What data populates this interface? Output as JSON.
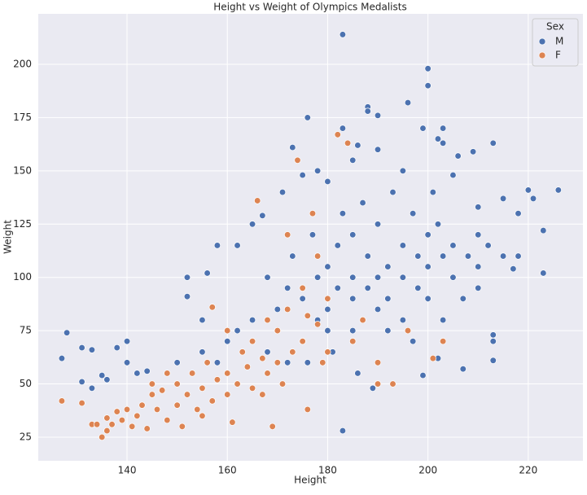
{
  "chart_data": {
    "type": "scatter",
    "title": "Height vs Weight of Olympics Medalists",
    "x_label": "Height",
    "y_label": "Weight",
    "xlim": [
      122.3,
      230.9
    ],
    "ylim": [
      13.9,
      223.7
    ],
    "xticks": [
      140,
      160,
      180,
      200,
      220
    ],
    "yticks": [
      25,
      50,
      75,
      100,
      125,
      150,
      175,
      200
    ],
    "grid": true,
    "legend_title": "Sex",
    "legend_position": "upper right",
    "series": [
      {
        "name": "M",
        "color": "#4c72b0",
        "x": [
          183,
          200,
          200,
          196,
          188,
          188,
          176,
          190,
          199,
          203,
          183,
          202,
          203,
          213,
          206,
          209,
          173,
          186,
          220,
          226,
          223,
          223,
          217,
          213,
          213,
          213,
          183,
          127,
          128,
          131,
          133,
          131,
          133,
          135,
          136,
          138,
          140,
          140,
          142,
          144,
          152,
          152,
          156,
          158,
          162,
          165,
          167,
          171,
          175,
          178,
          180,
          185,
          190,
          195,
          201,
          205,
          210,
          215,
          218,
          221,
          199,
          202,
          207,
          189,
          186,
          165,
          170,
          170,
          172,
          175,
          175,
          178,
          178,
          180,
          180,
          180,
          182,
          182,
          185,
          185,
          185,
          188,
          188,
          190,
          190,
          190,
          192,
          192,
          195,
          195,
          195,
          198,
          198,
          200,
          200,
          200,
          203,
          205,
          205,
          208,
          210,
          210,
          212,
          215,
          218,
          160,
          158,
          155,
          162,
          168,
          173,
          177,
          183,
          187,
          193,
          197,
          202,
          207,
          176,
          181,
          185,
          192,
          197,
          203,
          210,
          168,
          172,
          150,
          155
        ],
        "values": [
          214,
          198,
          190,
          182,
          180,
          178,
          175,
          176,
          170,
          170,
          170,
          165,
          163,
          163,
          157,
          159,
          161,
          162,
          141,
          141,
          122,
          102,
          104,
          61,
          70,
          73,
          28,
          62,
          74,
          67,
          66,
          51,
          48,
          54,
          52,
          67,
          70,
          60,
          55,
          56,
          100,
          91,
          102,
          115,
          115,
          125,
          129,
          140,
          148,
          150,
          145,
          155,
          160,
          150,
          140,
          148,
          133,
          137,
          130,
          137,
          54,
          62,
          57,
          48,
          55,
          80,
          85,
          75,
          95,
          90,
          70,
          100,
          80,
          85,
          105,
          75,
          95,
          115,
          90,
          100,
          120,
          95,
          110,
          85,
          100,
          125,
          105,
          90,
          100,
          115,
          80,
          110,
          95,
          105,
          120,
          90,
          110,
          100,
          115,
          110,
          105,
          120,
          115,
          110,
          110,
          70,
          60,
          65,
          75,
          65,
          110,
          120,
          130,
          135,
          140,
          130,
          125,
          90,
          60,
          65,
          75,
          75,
          70,
          80,
          95,
          100,
          60,
          60,
          80
        ]
      },
      {
        "name": "F",
        "color": "#dd8452",
        "x": [
          127,
          131,
          133,
          134,
          135,
          136,
          136,
          137,
          138,
          139,
          140,
          141,
          142,
          143,
          144,
          145,
          146,
          147,
          148,
          150,
          150,
          151,
          152,
          153,
          154,
          155,
          156,
          157,
          158,
          160,
          160,
          161,
          162,
          163,
          164,
          165,
          165,
          166,
          167,
          168,
          168,
          169,
          170,
          170,
          171,
          172,
          173,
          174,
          175,
          175,
          176,
          177,
          178,
          179,
          180,
          180,
          182,
          184,
          185,
          187,
          190,
          193,
          196,
          201,
          203,
          190,
          176,
          172,
          178,
          160,
          157,
          148,
          145,
          167,
          155
        ],
        "values": [
          42,
          41,
          31,
          31,
          25,
          28,
          34,
          31,
          37,
          33,
          38,
          30,
          35,
          40,
          29,
          45,
          38,
          47,
          33,
          50,
          40,
          30,
          45,
          55,
          38,
          48,
          60,
          42,
          52,
          55,
          45,
          32,
          50,
          65,
          58,
          48,
          70,
          136,
          62,
          80,
          55,
          30,
          75,
          60,
          50,
          85,
          65,
          155,
          95,
          70,
          38,
          130,
          78,
          60,
          90,
          65,
          167,
          163,
          70,
          80,
          60,
          50,
          75,
          62,
          70,
          50,
          82,
          120,
          110,
          75,
          86,
          55,
          50,
          45,
          35
        ]
      }
    ]
  }
}
